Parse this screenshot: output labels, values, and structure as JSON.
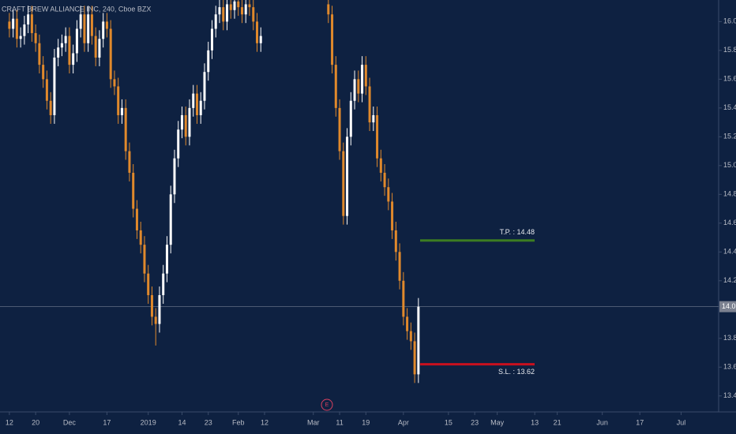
{
  "chart_data": {
    "type": "candlestick",
    "title": "CRAFT BREW ALLIANCE INC, 240, Cboe BZX",
    "up_color": "#ffffff",
    "down_color": "#e0892c",
    "x": [
      0,
      1,
      2,
      3,
      4,
      5,
      6,
      7,
      8,
      9,
      10,
      11,
      12,
      13,
      14,
      15,
      16,
      17,
      18,
      19,
      20,
      21,
      22,
      23,
      24,
      25,
      26,
      27,
      28,
      29,
      30,
      31,
      32,
      33,
      34,
      35,
      36,
      37,
      38,
      39,
      40,
      41,
      42,
      43,
      44,
      45,
      46,
      47,
      48,
      49,
      50,
      51,
      52,
      53,
      54,
      55,
      56,
      57,
      58,
      59,
      60,
      61,
      62,
      63,
      64,
      65,
      66,
      67,
      85,
      86,
      87,
      88,
      89,
      90,
      91,
      92,
      93,
      94,
      95,
      96,
      97,
      98,
      99,
      100,
      101,
      102,
      103,
      104,
      105,
      106,
      107,
      108,
      109
    ],
    "open": [
      16.0,
      15.95,
      16.02,
      15.88,
      15.9,
      15.98,
      16.05,
      15.92,
      15.85,
      15.7,
      15.6,
      15.45,
      15.35,
      15.75,
      15.82,
      15.85,
      15.9,
      15.7,
      15.78,
      15.95,
      16.05,
      15.85,
      16.05,
      15.9,
      15.75,
      15.88,
      16.0,
      15.95,
      15.6,
      15.55,
      15.35,
      15.4,
      15.1,
      14.95,
      14.7,
      14.55,
      14.45,
      14.25,
      14.1,
      13.95,
      13.9,
      14.1,
      14.25,
      14.45,
      14.8,
      15.05,
      15.25,
      15.35,
      15.2,
      15.4,
      15.5,
      15.35,
      15.45,
      15.65,
      15.8,
      15.95,
      16.05,
      16.1,
      16.0,
      16.12,
      16.08,
      16.14,
      16.1,
      16.05,
      16.12,
      16.1,
      16.0,
      15.85,
      16.12,
      16.05,
      15.7,
      15.4,
      15.1,
      14.65,
      15.2,
      15.45,
      15.6,
      15.5,
      15.7,
      15.55,
      15.3,
      15.35,
      15.05,
      14.95,
      14.85,
      14.75,
      14.55,
      14.4,
      14.2,
      13.95,
      13.85,
      13.78,
      13.55
    ],
    "high": [
      16.06,
      16.08,
      16.08,
      15.96,
      16.04,
      16.11,
      16.11,
      15.98,
      15.91,
      15.76,
      15.66,
      15.51,
      15.81,
      15.88,
      15.91,
      15.96,
      15.96,
      15.84,
      16.01,
      16.11,
      16.11,
      16.11,
      16.11,
      15.96,
      15.94,
      16.06,
      16.06,
      16.01,
      15.66,
      15.61,
      15.46,
      15.46,
      15.16,
      15.01,
      14.76,
      14.61,
      14.51,
      14.31,
      14.16,
      14.01,
      14.16,
      14.31,
      14.51,
      14.86,
      15.11,
      15.31,
      15.41,
      15.41,
      15.46,
      15.56,
      15.56,
      15.51,
      15.71,
      15.86,
      16.01,
      16.11,
      16.16,
      16.16,
      16.18,
      16.18,
      16.2,
      16.2,
      16.16,
      16.18,
      16.18,
      16.16,
      16.06,
      15.96,
      16.18,
      16.11,
      15.76,
      15.46,
      15.16,
      15.26,
      15.51,
      15.66,
      15.66,
      15.76,
      15.76,
      15.61,
      15.41,
      15.41,
      15.11,
      15.01,
      14.91,
      14.81,
      14.61,
      14.46,
      14.26,
      14.01,
      13.91,
      13.84,
      14.08
    ],
    "low": [
      15.89,
      15.89,
      15.82,
      15.82,
      15.84,
      15.92,
      15.86,
      15.79,
      15.64,
      15.54,
      15.39,
      15.29,
      15.29,
      15.69,
      15.76,
      15.79,
      15.64,
      15.64,
      15.72,
      15.89,
      15.79,
      15.79,
      15.84,
      15.69,
      15.69,
      15.82,
      15.89,
      15.54,
      15.49,
      15.29,
      15.29,
      15.04,
      14.89,
      14.64,
      14.49,
      14.39,
      14.19,
      14.04,
      13.89,
      13.75,
      13.84,
      14.04,
      14.19,
      14.39,
      14.74,
      14.99,
      15.19,
      15.14,
      15.14,
      15.34,
      15.29,
      15.29,
      15.39,
      15.59,
      15.74,
      15.89,
      15.99,
      15.94,
      15.94,
      16.02,
      16.02,
      16.04,
      15.99,
      15.99,
      16.04,
      15.94,
      15.79,
      15.79,
      15.99,
      15.64,
      15.34,
      15.04,
      14.59,
      14.59,
      15.14,
      15.39,
      15.44,
      15.44,
      15.49,
      15.24,
      15.24,
      14.99,
      14.89,
      14.79,
      14.69,
      14.49,
      14.34,
      14.14,
      13.89,
      13.79,
      13.72,
      13.49,
      13.49
    ],
    "close": [
      15.95,
      16.02,
      15.88,
      15.9,
      15.98,
      16.05,
      15.92,
      15.85,
      15.7,
      15.6,
      15.45,
      15.35,
      15.75,
      15.82,
      15.85,
      15.9,
      15.7,
      15.78,
      15.95,
      16.05,
      15.85,
      16.05,
      15.9,
      15.75,
      15.88,
      16.0,
      15.95,
      15.6,
      15.55,
      15.35,
      15.4,
      15.1,
      14.95,
      14.7,
      14.55,
      14.45,
      14.25,
      14.1,
      13.95,
      13.9,
      14.1,
      14.25,
      14.45,
      14.8,
      15.05,
      15.25,
      15.35,
      15.2,
      15.4,
      15.5,
      15.35,
      15.45,
      15.65,
      15.8,
      15.95,
      16.05,
      16.1,
      16.0,
      16.12,
      16.08,
      16.14,
      16.1,
      16.05,
      16.12,
      16.1,
      16.0,
      15.85,
      15.9,
      16.05,
      15.7,
      15.4,
      15.1,
      14.65,
      15.2,
      15.45,
      15.6,
      15.5,
      15.7,
      15.55,
      15.3,
      15.35,
      15.05,
      14.95,
      14.85,
      14.75,
      14.55,
      14.4,
      14.2,
      13.95,
      13.85,
      13.78,
      13.55,
      14.02
    ],
    "xlim": [
      -2.5,
      189
    ],
    "xticks": [
      {
        "value": 0,
        "label": "12"
      },
      {
        "value": 7,
        "label": "20"
      },
      {
        "value": 16,
        "label": "Dec"
      },
      {
        "value": 26,
        "label": "17"
      },
      {
        "value": 37,
        "label": "2019"
      },
      {
        "value": 46,
        "label": "14"
      },
      {
        "value": 53,
        "label": "23"
      },
      {
        "value": 61,
        "label": "Feb"
      },
      {
        "value": 68,
        "label": "12"
      },
      {
        "value": 81,
        "label": "Mar"
      },
      {
        "value": 88,
        "label": "11"
      },
      {
        "value": 95,
        "label": "19"
      },
      {
        "value": 105,
        "label": "Apr"
      },
      {
        "value": 117,
        "label": "15"
      },
      {
        "value": 124,
        "label": "23"
      },
      {
        "value": 130,
        "label": "May"
      },
      {
        "value": 140,
        "label": "13"
      },
      {
        "value": 146,
        "label": "21"
      },
      {
        "value": 158,
        "label": "Jun"
      },
      {
        "value": 168,
        "label": "17"
      },
      {
        "value": 179,
        "label": "Jul"
      }
    ],
    "ylim": [
      13.3,
      16.15
    ],
    "yticks": [
      {
        "value": 13.4,
        "label": "13.40"
      },
      {
        "value": 13.6,
        "label": "13.60"
      },
      {
        "value": 13.8,
        "label": "13.80"
      },
      {
        "value": 14.2,
        "label": "14.20"
      },
      {
        "value": 14.4,
        "label": "14.40"
      },
      {
        "value": 14.6,
        "label": "14.60"
      },
      {
        "value": 14.8,
        "label": "14.80"
      },
      {
        "value": 15,
        "label": "15.00"
      },
      {
        "value": 15.2,
        "label": "15.20"
      },
      {
        "value": 15.4,
        "label": "15.40"
      },
      {
        "value": 15.6,
        "label": "15.60"
      },
      {
        "value": 15.8,
        "label": "15.80"
      },
      {
        "value": 16,
        "label": "16.00"
      }
    ],
    "last_price": {
      "value": 14.02,
      "label": "14.02"
    },
    "annotations": [
      {
        "label": "T.P. : 14.48",
        "value": 14.48,
        "color": "#3c7d22"
      },
      {
        "label": "S.L. : 13.62",
        "value": 13.62,
        "color": "#c8101e"
      }
    ],
    "event_marker": "E"
  }
}
